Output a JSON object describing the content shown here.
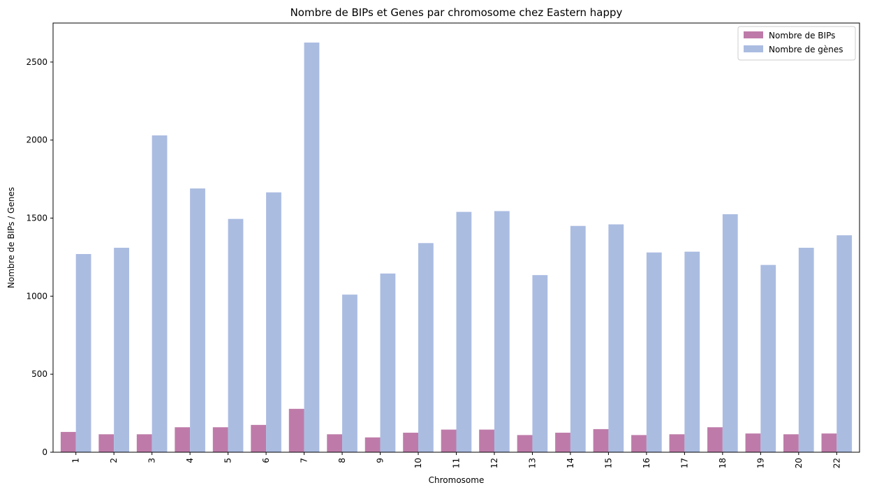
{
  "chart_data": {
    "type": "bar",
    "title": "Nombre de BIPs et Genes par chromosome chez Eastern happy",
    "xlabel": "Chromosome",
    "ylabel": "Nombre de BIPs / Genes",
    "categories": [
      "1",
      "2",
      "3",
      "4",
      "5",
      "6",
      "7",
      "8",
      "9",
      "10",
      "11",
      "12",
      "13",
      "14",
      "15",
      "16",
      "17",
      "18",
      "19",
      "20",
      "22"
    ],
    "series": [
      {
        "name": "Nombre de BIPs",
        "color": "#be7ba9",
        "values": [
          130,
          115,
          115,
          160,
          160,
          175,
          278,
          115,
          95,
          125,
          145,
          145,
          110,
          125,
          148,
          110,
          115,
          160,
          120,
          115,
          120
        ]
      },
      {
        "name": "Nombre de gènes",
        "color": "#abbce1",
        "values": [
          1270,
          1310,
          2030,
          1690,
          1495,
          1665,
          2625,
          1010,
          1145,
          1340,
          1540,
          1545,
          1135,
          1450,
          1460,
          1280,
          1285,
          1525,
          1200,
          1310,
          1390
        ]
      }
    ],
    "ylim": [
      0,
      2750
    ],
    "yticks": [
      0,
      500,
      1000,
      1500,
      2000,
      2500
    ],
    "grid": false,
    "legend_position": "top-right"
  }
}
